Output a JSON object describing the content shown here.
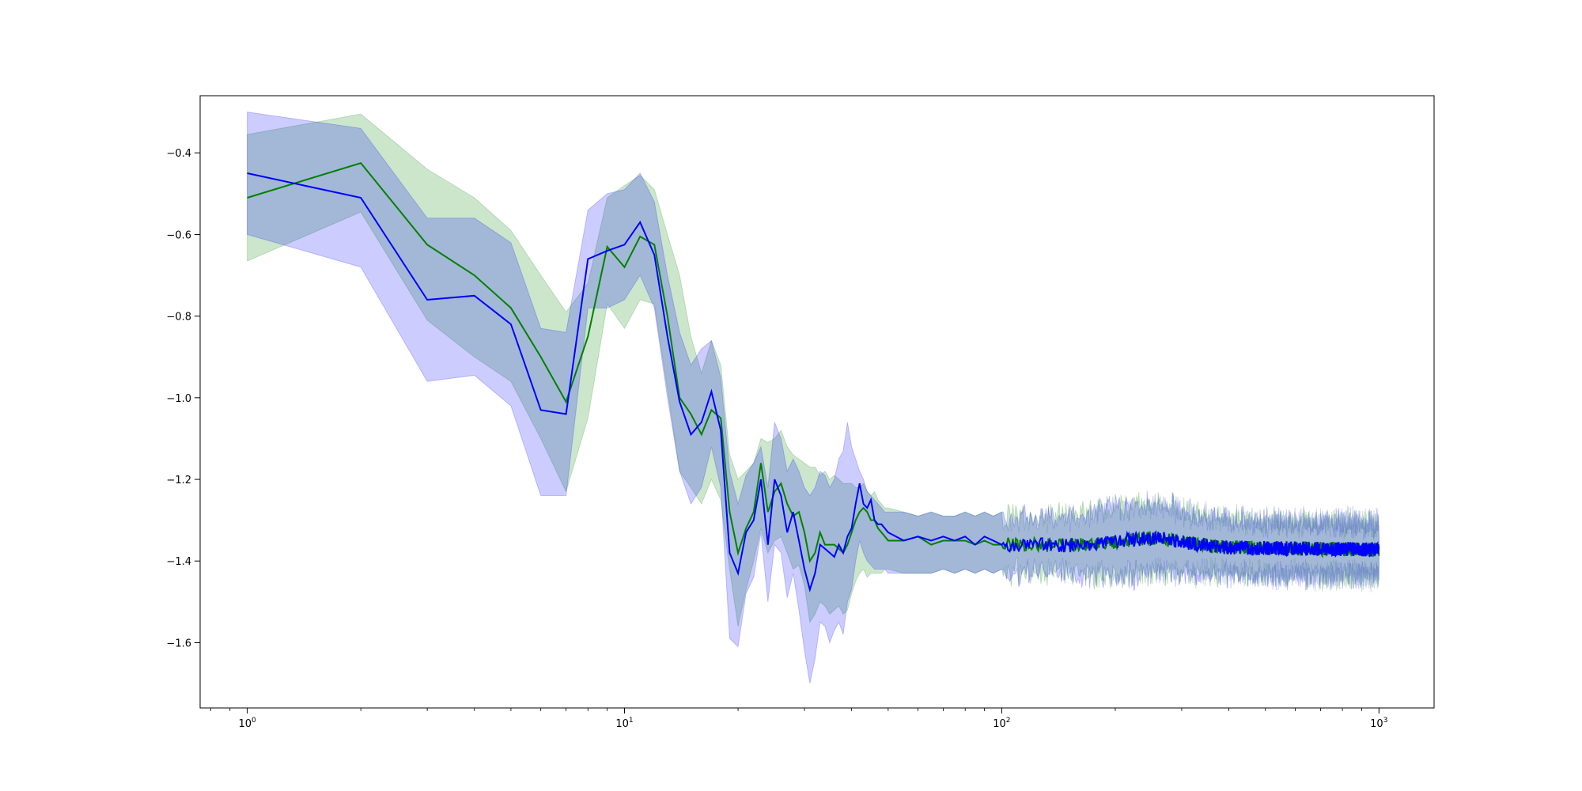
{
  "chart_data": {
    "type": "line",
    "title": "",
    "xlabel": "",
    "ylabel": "",
    "x_scale": "log",
    "xlim": [
      0.75,
      1400
    ],
    "ylim": [
      -1.76,
      -0.26
    ],
    "grid": false,
    "legend": "none",
    "x_ticks": [
      {
        "value": 1,
        "base": "10",
        "exp": "0"
      },
      {
        "value": 10,
        "base": "10",
        "exp": "1"
      },
      {
        "value": 100,
        "base": "10",
        "exp": "2"
      },
      {
        "value": 1000,
        "base": "10",
        "exp": "3"
      }
    ],
    "y_ticks": [
      {
        "value": -0.4,
        "label": "−0.4"
      },
      {
        "value": -0.6,
        "label": "−0.6"
      },
      {
        "value": -0.8,
        "label": "−0.8"
      },
      {
        "value": -1.0,
        "label": "−1.0"
      },
      {
        "value": -1.2,
        "label": "−1.2"
      },
      {
        "value": -1.4,
        "label": "−1.4"
      },
      {
        "value": -1.6,
        "label": "−1.6"
      }
    ],
    "series": [
      {
        "color": "#008000",
        "band_color": "#008000",
        "band_opacity": 0.2,
        "tail_mean": -1.36,
        "x": [
          1,
          2,
          3,
          4,
          5,
          6,
          7,
          8,
          9,
          10,
          11,
          12,
          13,
          14,
          15,
          16,
          17,
          18,
          19,
          20,
          21,
          22,
          23,
          24,
          25,
          26,
          27,
          28,
          29,
          30,
          31,
          32,
          33,
          34,
          35,
          36,
          37,
          38,
          39,
          40,
          41,
          42,
          43,
          44,
          45,
          46,
          47,
          48,
          49,
          50,
          55,
          60,
          65,
          70,
          75,
          80,
          85,
          90,
          95,
          100
        ],
        "mean": [
          -0.51,
          -0.425,
          -0.625,
          -0.7,
          -0.78,
          -0.9,
          -1.01,
          -0.85,
          -0.63,
          -0.68,
          -0.605,
          -0.625,
          -0.8,
          -1.0,
          -1.04,
          -1.09,
          -1.03,
          -1.05,
          -1.28,
          -1.38,
          -1.32,
          -1.28,
          -1.16,
          -1.28,
          -1.23,
          -1.21,
          -1.26,
          -1.29,
          -1.28,
          -1.33,
          -1.4,
          -1.38,
          -1.33,
          -1.36,
          -1.36,
          -1.36,
          -1.37,
          -1.38,
          -1.36,
          -1.33,
          -1.3,
          -1.28,
          -1.27,
          -1.28,
          -1.3,
          -1.3,
          -1.32,
          -1.33,
          -1.34,
          -1.35,
          -1.35,
          -1.34,
          -1.36,
          -1.35,
          -1.35,
          -1.35,
          -1.36,
          -1.35,
          -1.36,
          -1.36
        ],
        "upper": [
          -0.355,
          -0.305,
          -0.44,
          -0.51,
          -0.59,
          -0.7,
          -0.79,
          -0.72,
          -0.51,
          -0.48,
          -0.455,
          -0.49,
          -0.6,
          -0.7,
          -0.85,
          -0.94,
          -0.86,
          -0.92,
          -1.14,
          -1.2,
          -1.18,
          -1.16,
          -1.1,
          -1.11,
          -1.1,
          -1.08,
          -1.12,
          -1.14,
          -1.15,
          -1.16,
          -1.17,
          -1.17,
          -1.19,
          -1.18,
          -1.2,
          -1.19,
          -1.2,
          -1.21,
          -1.21,
          -1.21,
          -1.22,
          -1.22,
          -1.21,
          -1.23,
          -1.24,
          -1.23,
          -1.25,
          -1.26,
          -1.27,
          -1.27,
          -1.28,
          -1.29,
          -1.28,
          -1.29,
          -1.29,
          -1.28,
          -1.29,
          -1.28,
          -1.29,
          -1.28
        ],
        "lower": [
          -0.665,
          -0.545,
          -0.81,
          -0.9,
          -0.96,
          -1.1,
          -1.23,
          -1.05,
          -0.77,
          -0.83,
          -0.76,
          -0.77,
          -0.98,
          -1.18,
          -1.22,
          -1.26,
          -1.2,
          -1.25,
          -1.42,
          -1.56,
          -1.47,
          -1.4,
          -1.32,
          -1.38,
          -1.35,
          -1.34,
          -1.38,
          -1.42,
          -1.41,
          -1.46,
          -1.55,
          -1.53,
          -1.5,
          -1.51,
          -1.53,
          -1.52,
          -1.51,
          -1.53,
          -1.52,
          -1.48,
          -1.45,
          -1.43,
          -1.42,
          -1.44,
          -1.43,
          -1.43,
          -1.43,
          -1.43,
          -1.42,
          -1.42,
          -1.43,
          -1.43,
          -1.43,
          -1.42,
          -1.43,
          -1.42,
          -1.43,
          -1.42,
          -1.43,
          -1.42
        ]
      },
      {
        "color": "#0000ff",
        "band_color": "#0000ff",
        "band_opacity": 0.2,
        "tail_mean": -1.36,
        "x": [
          1,
          2,
          3,
          4,
          5,
          6,
          7,
          8,
          9,
          10,
          11,
          12,
          13,
          14,
          15,
          16,
          17,
          18,
          19,
          20,
          21,
          22,
          23,
          24,
          25,
          26,
          27,
          28,
          29,
          30,
          31,
          32,
          33,
          34,
          35,
          36,
          37,
          38,
          39,
          40,
          41,
          42,
          43,
          44,
          45,
          46,
          47,
          48,
          49,
          50,
          55,
          60,
          65,
          70,
          75,
          80,
          85,
          90,
          95,
          100
        ],
        "mean": [
          -0.45,
          -0.51,
          -0.76,
          -0.75,
          -0.82,
          -1.03,
          -1.04,
          -0.66,
          -0.64,
          -0.625,
          -0.57,
          -0.65,
          -0.85,
          -1.01,
          -1.09,
          -1.06,
          -0.985,
          -1.08,
          -1.38,
          -1.43,
          -1.33,
          -1.3,
          -1.2,
          -1.36,
          -1.2,
          -1.24,
          -1.33,
          -1.28,
          -1.35,
          -1.42,
          -1.47,
          -1.43,
          -1.36,
          -1.37,
          -1.38,
          -1.39,
          -1.36,
          -1.38,
          -1.34,
          -1.32,
          -1.26,
          -1.21,
          -1.26,
          -1.27,
          -1.25,
          -1.3,
          -1.31,
          -1.31,
          -1.32,
          -1.33,
          -1.35,
          -1.34,
          -1.35,
          -1.34,
          -1.35,
          -1.34,
          -1.36,
          -1.34,
          -1.35,
          -1.36
        ],
        "upper": [
          -0.3,
          -0.34,
          -0.56,
          -0.56,
          -0.62,
          -0.83,
          -0.84,
          -0.54,
          -0.5,
          -0.49,
          -0.45,
          -0.52,
          -0.7,
          -0.84,
          -0.92,
          -0.88,
          -0.86,
          -0.95,
          -1.18,
          -1.26,
          -1.19,
          -1.16,
          -1.12,
          -1.22,
          -1.06,
          -1.1,
          -1.18,
          -1.15,
          -1.18,
          -1.22,
          -1.24,
          -1.22,
          -1.18,
          -1.19,
          -1.22,
          -1.2,
          -1.15,
          -1.13,
          -1.06,
          -1.12,
          -1.15,
          -1.18,
          -1.2,
          -1.23,
          -1.24,
          -1.25,
          -1.26,
          -1.27,
          -1.28,
          -1.28,
          -1.28,
          -1.29,
          -1.28,
          -1.29,
          -1.29,
          -1.28,
          -1.29,
          -1.28,
          -1.29,
          -1.28
        ],
        "lower": [
          -0.6,
          -0.68,
          -0.96,
          -0.945,
          -1.02,
          -1.24,
          -1.24,
          -0.78,
          -0.78,
          -0.76,
          -0.7,
          -0.78,
          -1.0,
          -1.18,
          -1.26,
          -1.22,
          -1.12,
          -1.22,
          -1.59,
          -1.61,
          -1.48,
          -1.44,
          -1.33,
          -1.5,
          -1.36,
          -1.38,
          -1.49,
          -1.43,
          -1.52,
          -1.62,
          -1.7,
          -1.64,
          -1.55,
          -1.56,
          -1.6,
          -1.57,
          -1.55,
          -1.58,
          -1.5,
          -1.47,
          -1.4,
          -1.35,
          -1.38,
          -1.4,
          -1.41,
          -1.42,
          -1.42,
          -1.42,
          -1.42,
          -1.43,
          -1.43,
          -1.43,
          -1.43,
          -1.42,
          -1.43,
          -1.42,
          -1.43,
          -1.42,
          -1.43,
          -1.42
        ]
      }
    ]
  }
}
